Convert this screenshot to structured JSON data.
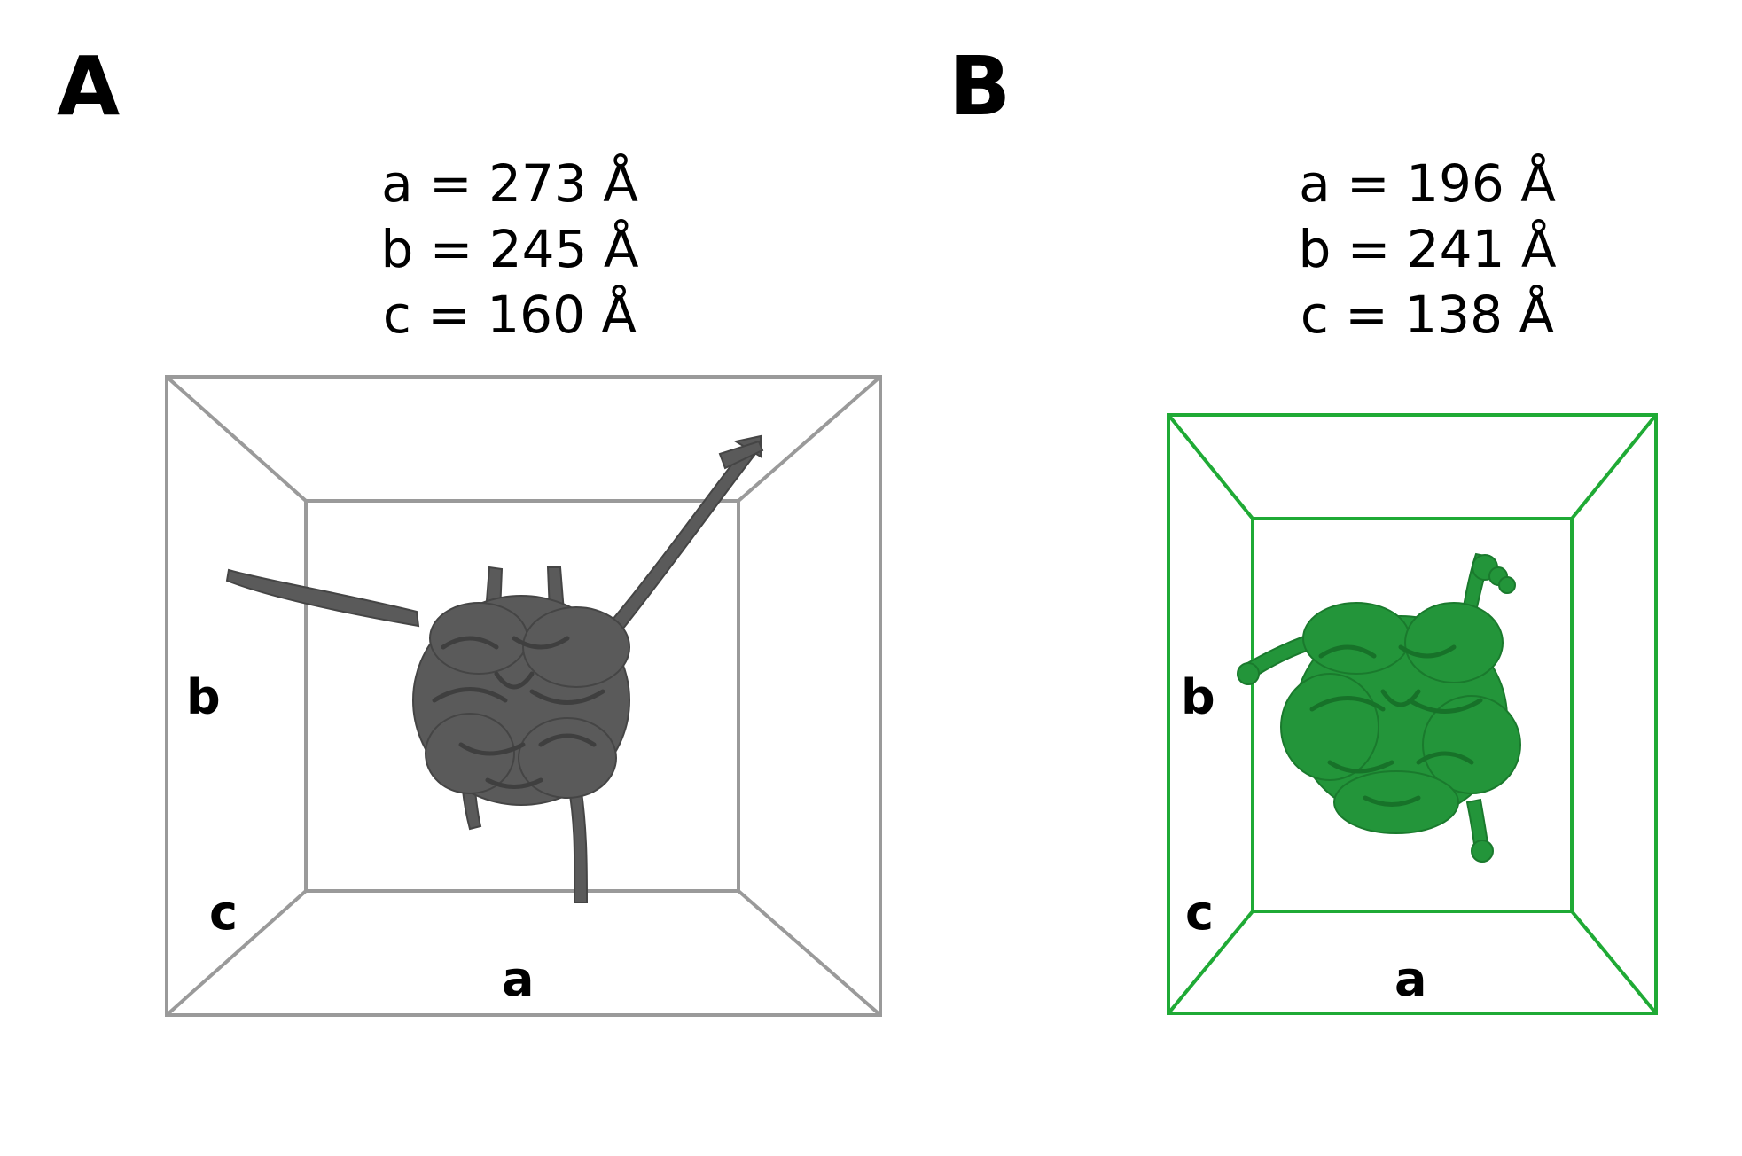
{
  "panels": [
    {
      "letter": "A",
      "dims": [
        "a = 273 Å",
        "b = 245 Å",
        "c = 160 Å"
      ],
      "axes": {
        "a": "a",
        "b": "b",
        "c": "c"
      },
      "color": "#999999",
      "blob_color": "#595959"
    },
    {
      "letter": "B",
      "dims": [
        "a = 196 Å",
        "b = 241 Å",
        "c = 138 Å"
      ],
      "axes": {
        "a": "a",
        "b": "b",
        "c": "c"
      },
      "color": "#1faa35",
      "blob_color": "#23953a"
    }
  ]
}
